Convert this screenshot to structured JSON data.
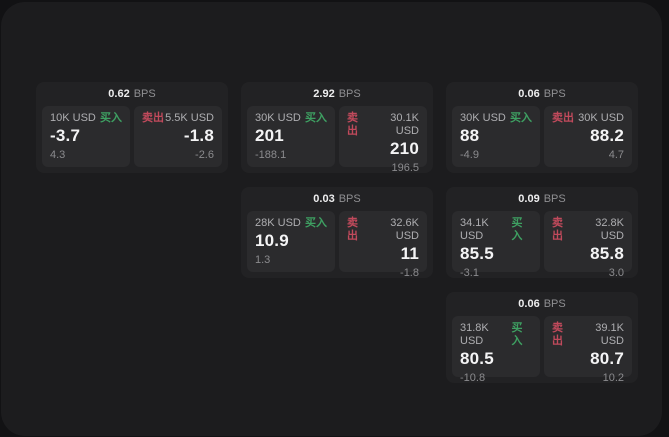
{
  "labels": {
    "bps_unit": "BPS",
    "buy": "买入",
    "sell": "卖出"
  },
  "colors": {
    "page_bg": "#121214",
    "surface_bg": "#1c1c1e",
    "card_bg": "#222224",
    "panel_bg": "#2b2b2d",
    "buy_accent": "#3ea062",
    "sell_accent": "#c14a5c",
    "value_text": "#f4f4f5",
    "muted_text": "#8b8b8e"
  },
  "cards": [
    {
      "grid": {
        "row": 1,
        "col": 1
      },
      "bps": "0.62",
      "buy": {
        "size": "10K USD",
        "value": "-3.7",
        "sub": "4.3"
      },
      "sell": {
        "size": "5.5K USD",
        "value": "-1.8",
        "sub": "-2.6"
      }
    },
    {
      "grid": {
        "row": 1,
        "col": 2
      },
      "bps": "2.92",
      "buy": {
        "size": "30K USD",
        "value": "201",
        "sub": "-188.1"
      },
      "sell": {
        "size": "30.1K USD",
        "value": "210",
        "sub": "196.5"
      }
    },
    {
      "grid": {
        "row": 1,
        "col": 3
      },
      "bps": "0.06",
      "buy": {
        "size": "30K USD",
        "value": "88",
        "sub": "-4.9"
      },
      "sell": {
        "size": "30K USD",
        "value": "88.2",
        "sub": "4.7"
      }
    },
    {
      "grid": {
        "row": 2,
        "col": 2
      },
      "bps": "0.03",
      "buy": {
        "size": "28K USD",
        "value": "10.9",
        "sub": "1.3"
      },
      "sell": {
        "size": "32.6K USD",
        "value": "11",
        "sub": "-1.8"
      }
    },
    {
      "grid": {
        "row": 2,
        "col": 3
      },
      "bps": "0.09",
      "buy": {
        "size": "34.1K USD",
        "value": "85.5",
        "sub": "-3.1"
      },
      "sell": {
        "size": "32.8K USD",
        "value": "85.8",
        "sub": "3.0"
      }
    },
    {
      "grid": {
        "row": 3,
        "col": 3
      },
      "bps": "0.06",
      "buy": {
        "size": "31.8K USD",
        "value": "80.5",
        "sub": "-10.8"
      },
      "sell": {
        "size": "39.1K USD",
        "value": "80.7",
        "sub": "10.2"
      }
    }
  ]
}
